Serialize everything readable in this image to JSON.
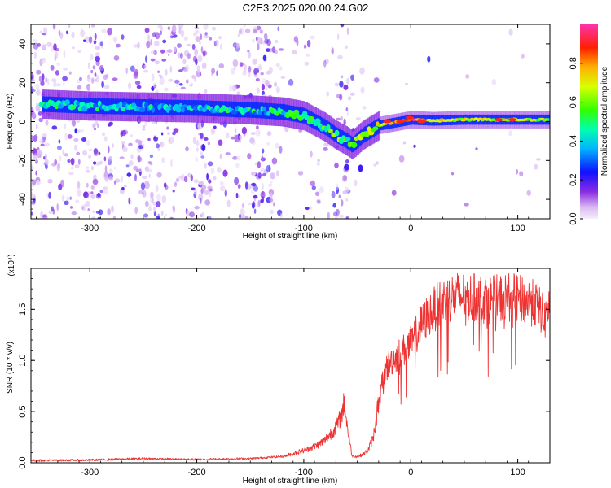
{
  "title": "C2E3.2025.020.00.24.G02",
  "chart_data": [
    {
      "type": "heatmap",
      "xlabel": "Height of straight line (km)",
      "ylabel": "Frequency (Hz)",
      "xlim": [
        -355,
        130
      ],
      "ylim": [
        -50,
        50
      ],
      "xticks": [
        -300,
        -200,
        -100,
        0,
        100
      ],
      "yticks": [
        -40,
        -20,
        0,
        20,
        40
      ],
      "colorbar": {
        "label": "Normalized spectral amplitude",
        "range": [
          0,
          1
        ],
        "ticks": [
          "0.0",
          "0.2",
          "0.4",
          "0.6",
          "0.8"
        ]
      },
      "ridge": {
        "x": [
          -345,
          -300,
          -250,
          -200,
          -150,
          -120,
          -100,
          -80,
          -70,
          -60,
          -55,
          -45,
          -30,
          -10,
          0,
          20,
          50,
          80,
          100,
          130
        ],
        "y": [
          9,
          8,
          7.5,
          7,
          6,
          5,
          3,
          -3,
          -7,
          -10,
          -12,
          -7,
          -2,
          0,
          1,
          0.5,
          1,
          1,
          1,
          1
        ],
        "amplitude": [
          0.45,
          0.4,
          0.4,
          0.4,
          0.4,
          0.45,
          0.5,
          0.5,
          0.55,
          0.55,
          0.5,
          0.6,
          0.7,
          0.85,
          0.9,
          0.7,
          0.65,
          0.65,
          0.75,
          0.6
        ]
      }
    },
    {
      "type": "line",
      "xlabel": "Height of straight line (km)",
      "ylabel": "SNR (10 * v/v)",
      "scale_label": "(x10⁴)",
      "xlim": [
        -355,
        130
      ],
      "ylim": [
        0,
        1.9
      ],
      "xticks": [
        -300,
        -200,
        -100,
        0,
        100
      ],
      "yticks": [
        "0.0",
        "0.5",
        "1.0",
        "1.5"
      ],
      "series": [
        {
          "color": "#ee3333",
          "x": [
            -355,
            -300,
            -250,
            -200,
            -150,
            -120,
            -100,
            -90,
            -80,
            -70,
            -65,
            -62,
            -60,
            -57,
            -55,
            -50,
            -45,
            -40,
            -35,
            -30,
            -25,
            -20,
            -10,
            0,
            10,
            20,
            30,
            40,
            50,
            60,
            70,
            80,
            90,
            100,
            110,
            120,
            125,
            130
          ],
          "y": [
            0.02,
            0.025,
            0.04,
            0.03,
            0.04,
            0.06,
            0.12,
            0.16,
            0.22,
            0.35,
            0.45,
            0.6,
            0.4,
            0.2,
            0.07,
            0.06,
            0.08,
            0.12,
            0.25,
            0.6,
            0.95,
            1.05,
            1.15,
            1.25,
            1.45,
            1.6,
            1.7,
            1.75,
            1.75,
            1.73,
            1.72,
            1.72,
            1.75,
            1.72,
            1.7,
            1.65,
            1.5,
            1.68
          ]
        }
      ]
    }
  ]
}
